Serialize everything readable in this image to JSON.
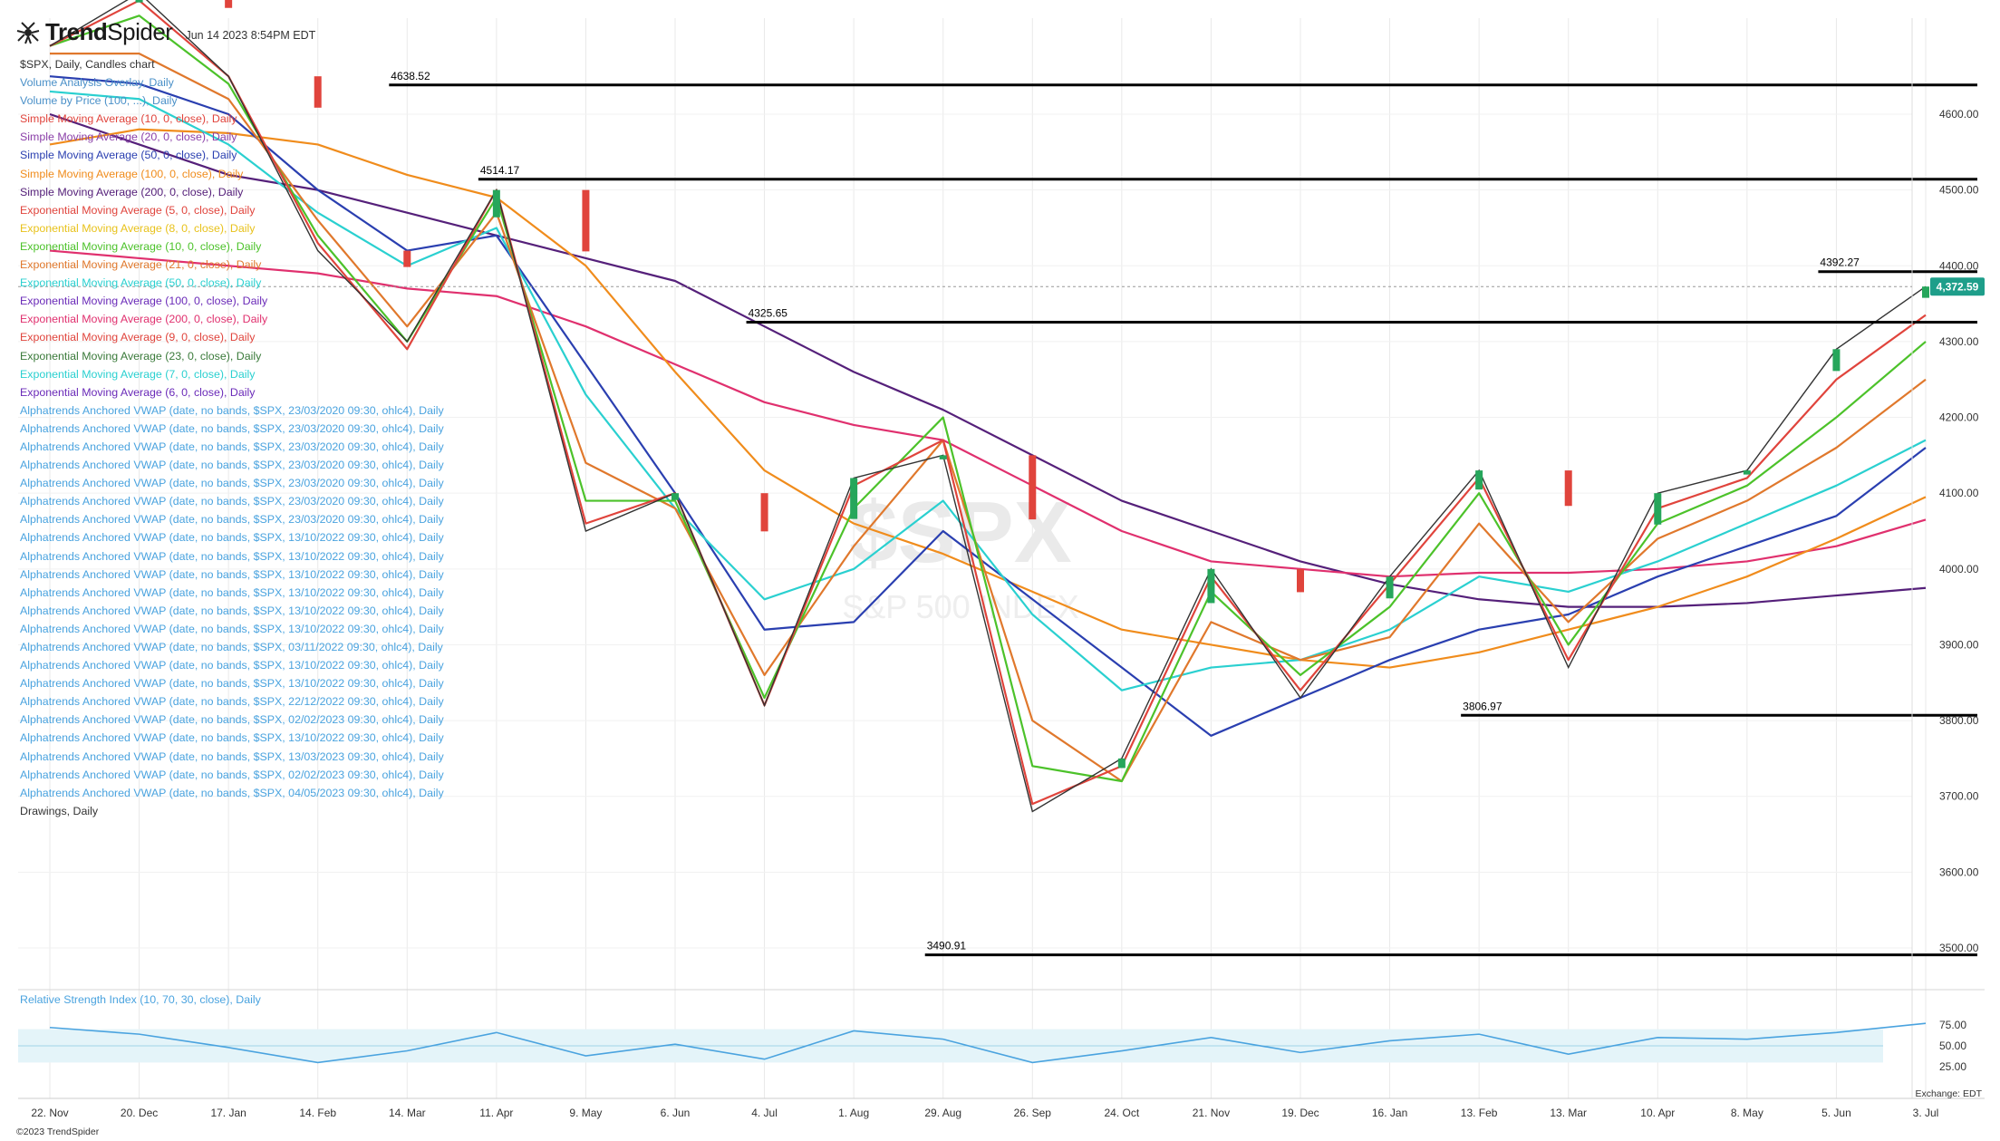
{
  "header": {
    "brand_bold": "Trend",
    "brand_light": "Spider",
    "date": "Jun 14 2023 8:54PM EDT"
  },
  "legend": [
    {
      "text": "$SPX, Daily, Candles chart",
      "color": "#333333"
    },
    {
      "text": "Volume Analysis Overlay, Daily",
      "color": "#4a90c8"
    },
    {
      "text": "Volume by Price (100, ...), Daily",
      "color": "#4a90c8"
    },
    {
      "text": "Simple Moving Average (10, 0, close), Daily",
      "color": "#e0443c"
    },
    {
      "text": "Simple Moving Average (20, 0, close), Daily",
      "color": "#8a3fa8"
    },
    {
      "text": "Simple Moving Average (50, 0, close), Daily",
      "color": "#2a3fb0"
    },
    {
      "text": "Simple Moving Average (100, 0, close), Daily",
      "color": "#f08c1c"
    },
    {
      "text": "Simple Moving Average (200, 0, close), Daily",
      "color": "#55207a"
    },
    {
      "text": "Exponential Moving Average (5, 0, close), Daily",
      "color": "#e0443c"
    },
    {
      "text": "Exponential Moving Average (8, 0, close), Daily",
      "color": "#e8c21c"
    },
    {
      "text": "Exponential Moving Average (10, 0, close), Daily",
      "color": "#4cc22a"
    },
    {
      "text": "Exponential Moving Average (21, 0, close), Daily",
      "color": "#e0782c"
    },
    {
      "text": "Exponential Moving Average (50, 0, close), Daily",
      "color": "#2ad0d0"
    },
    {
      "text": "Exponential Moving Average (100, 0, close), Daily",
      "color": "#6a2ab8"
    },
    {
      "text": "Exponential Moving Average (200, 0, close), Daily",
      "color": "#e0306e"
    },
    {
      "text": "Exponential Moving Average (9, 0, close), Daily",
      "color": "#e0443c"
    },
    {
      "text": "Exponential Moving Average (23, 0, close), Daily",
      "color": "#3a7a3a"
    },
    {
      "text": "Exponential Moving Average (7, 0, close), Daily",
      "color": "#2ad0d0"
    },
    {
      "text": "Exponential Moving Average (6, 0, close), Daily",
      "color": "#6a2ab8"
    },
    {
      "text": "Alphatrends Anchored VWAP (date, no bands, $SPX, 23/03/2020 09:30, ohlc4), Daily",
      "color": "#4aa3df"
    },
    {
      "text": "Alphatrends Anchored VWAP (date, no bands, $SPX, 23/03/2020 09:30, ohlc4), Daily",
      "color": "#4aa3df"
    },
    {
      "text": "Alphatrends Anchored VWAP (date, no bands, $SPX, 23/03/2020 09:30, ohlc4), Daily",
      "color": "#4aa3df"
    },
    {
      "text": "Alphatrends Anchored VWAP (date, no bands, $SPX, 23/03/2020 09:30, ohlc4), Daily",
      "color": "#4aa3df"
    },
    {
      "text": "Alphatrends Anchored VWAP (date, no bands, $SPX, 23/03/2020 09:30, ohlc4), Daily",
      "color": "#4aa3df"
    },
    {
      "text": "Alphatrends Anchored VWAP (date, no bands, $SPX, 23/03/2020 09:30, ohlc4), Daily",
      "color": "#4aa3df"
    },
    {
      "text": "Alphatrends Anchored VWAP (date, no bands, $SPX, 23/03/2020 09:30, ohlc4), Daily",
      "color": "#4aa3df"
    },
    {
      "text": "Alphatrends Anchored VWAP (date, no bands, $SPX, 13/10/2022 09:30, ohlc4), Daily",
      "color": "#4aa3df"
    },
    {
      "text": "Alphatrends Anchored VWAP (date, no bands, $SPX, 13/10/2022 09:30, ohlc4), Daily",
      "color": "#4aa3df"
    },
    {
      "text": "Alphatrends Anchored VWAP (date, no bands, $SPX, 13/10/2022 09:30, ohlc4), Daily",
      "color": "#4aa3df"
    },
    {
      "text": "Alphatrends Anchored VWAP (date, no bands, $SPX, 13/10/2022 09:30, ohlc4), Daily",
      "color": "#4aa3df"
    },
    {
      "text": "Alphatrends Anchored VWAP (date, no bands, $SPX, 13/10/2022 09:30, ohlc4), Daily",
      "color": "#4aa3df"
    },
    {
      "text": "Alphatrends Anchored VWAP (date, no bands, $SPX, 13/10/2022 09:30, ohlc4), Daily",
      "color": "#4aa3df"
    },
    {
      "text": "Alphatrends Anchored VWAP (date, no bands, $SPX, 03/11/2022 09:30, ohlc4), Daily",
      "color": "#4aa3df"
    },
    {
      "text": "Alphatrends Anchored VWAP (date, no bands, $SPX, 13/10/2022 09:30, ohlc4), Daily",
      "color": "#4aa3df"
    },
    {
      "text": "Alphatrends Anchored VWAP (date, no bands, $SPX, 13/10/2022 09:30, ohlc4), Daily",
      "color": "#4aa3df"
    },
    {
      "text": "Alphatrends Anchored VWAP (date, no bands, $SPX, 22/12/2022 09:30, ohlc4), Daily",
      "color": "#4aa3df"
    },
    {
      "text": "Alphatrends Anchored VWAP (date, no bands, $SPX, 02/02/2023 09:30, ohlc4), Daily",
      "color": "#4aa3df"
    },
    {
      "text": "Alphatrends Anchored VWAP (date, no bands, $SPX, 13/10/2022 09:30, ohlc4), Daily",
      "color": "#4aa3df"
    },
    {
      "text": "Alphatrends Anchored VWAP (date, no bands, $SPX, 13/03/2023 09:30, ohlc4), Daily",
      "color": "#4aa3df"
    },
    {
      "text": "Alphatrends Anchored VWAP (date, no bands, $SPX, 02/02/2023 09:30, ohlc4), Daily",
      "color": "#4aa3df"
    },
    {
      "text": "Alphatrends Anchored VWAP (date, no bands, $SPX, 04/05/2023 09:30, ohlc4), Daily",
      "color": "#4aa3df"
    },
    {
      "text": "Drawings, Daily",
      "color": "#333333"
    }
  ],
  "footer": {
    "copyright": "©2023 TrendSpider",
    "exchange": "Exchange: EDT"
  },
  "rsi_label": "Relative Strength Index (10, 70, 30, close), Daily",
  "chart_data": {
    "type": "candlestick",
    "symbol": "$SPX",
    "watermark": "$SPX",
    "watermark_sub": "S&P 500 INDEX",
    "price_axis": {
      "min": 3450,
      "max": 4700,
      "ticks": [
        3500,
        3600,
        3700,
        3800,
        3900,
        4000,
        4100,
        4200,
        4300,
        4400,
        4500,
        4600
      ]
    },
    "last_price": 4372.59,
    "last_price_label": "4,372.59",
    "x_labels": [
      "22. Nov",
      "20. Dec",
      "17. Jan",
      "14. Feb",
      "14. Mar",
      "11. Apr",
      "9. May",
      "6. Jun",
      "4. Jul",
      "1. Aug",
      "29. Aug",
      "26. Sep",
      "24. Oct",
      "21. Nov",
      "19. Dec",
      "16. Jan",
      "13. Feb",
      "13. Mar",
      "10. Apr",
      "8. May",
      "5. Jun",
      "3. Jul"
    ],
    "horizontal_levels": [
      {
        "value": 4638.52,
        "label": "4638.52",
        "start_label": "14. Mar"
      },
      {
        "value": 4514.17,
        "label": "4514.17",
        "start_label": "11. Apr"
      },
      {
        "value": 4392.27,
        "label": "4392.27",
        "start_label": "5. Jun"
      },
      {
        "value": 4325.65,
        "label": "4325.65",
        "start_label": "4. Jul"
      },
      {
        "value": 3806.97,
        "label": "3806.97",
        "start_label": "13. Feb"
      },
      {
        "value": 3490.91,
        "label": "3490.91",
        "start_label": "29. Aug"
      }
    ],
    "price_series": [
      [
        "22. Nov",
        4690
      ],
      [
        "20. Dec",
        4760
      ],
      [
        "17. Jan",
        4650
      ],
      [
        "14. Feb",
        4420
      ],
      [
        "14. Mar",
        4300
      ],
      [
        "11. Apr",
        4500
      ],
      [
        "9. May",
        4050
      ],
      [
        "6. Jun",
        4100
      ],
      [
        "4. Jul",
        3820
      ],
      [
        "1. Aug",
        4120
      ],
      [
        "29. Aug",
        4150
      ],
      [
        "26. Sep",
        3680
      ],
      [
        "24. Oct",
        3750
      ],
      [
        "21. Nov",
        4000
      ],
      [
        "19. Dec",
        3830
      ],
      [
        "16. Jan",
        3990
      ],
      [
        "13. Feb",
        4130
      ],
      [
        "13. Mar",
        3870
      ],
      [
        "10. Apr",
        4100
      ],
      [
        "8. May",
        4130
      ],
      [
        "5. Jun",
        4290
      ],
      [
        "3. Jul",
        4372.59
      ]
    ],
    "moving_averages": [
      {
        "name": "Simple Moving Average (200, 0, close)",
        "color": "#55207a",
        "values": [
          4600,
          4560,
          4520,
          4500,
          4470,
          4440,
          4410,
          4380,
          4320,
          4260,
          4210,
          4150,
          4090,
          4050,
          4010,
          3980,
          3960,
          3950,
          3950,
          3955,
          3965,
          3975
        ]
      },
      {
        "name": "Exponential Moving Average (200, 0, close)",
        "color": "#e0306e",
        "values": [
          4420,
          4410,
          4400,
          4390,
          4370,
          4360,
          4320,
          4270,
          4220,
          4190,
          4170,
          4110,
          4050,
          4010,
          4000,
          3990,
          3995,
          3995,
          4000,
          4010,
          4030,
          4065
        ]
      },
      {
        "name": "Simple Moving Average (100, 0, close)",
        "color": "#f08c1c",
        "values": [
          4560,
          4580,
          4575,
          4560,
          4520,
          4490,
          4400,
          4260,
          4130,
          4060,
          4020,
          3970,
          3920,
          3900,
          3880,
          3870,
          3890,
          3920,
          3950,
          3990,
          4040,
          4095
        ]
      },
      {
        "name": "Simple Moving Average (50, 0, close)",
        "color": "#2a3fb0",
        "values": [
          4650,
          4640,
          4600,
          4500,
          4420,
          4440,
          4270,
          4100,
          3920,
          3930,
          4050,
          3960,
          3870,
          3780,
          3830,
          3880,
          3920,
          3940,
          3990,
          4030,
          4070,
          4160
        ]
      },
      {
        "name": "Exponential Moving Average (50, 0, close)",
        "color": "#2ad0d0",
        "values": [
          4630,
          4620,
          4560,
          4470,
          4400,
          4450,
          4230,
          4080,
          3960,
          4000,
          4090,
          3940,
          3840,
          3870,
          3880,
          3920,
          3990,
          3970,
          4010,
          4060,
          4110,
          4170
        ]
      },
      {
        "name": "Exponential Moving Average (21, 0, close)",
        "color": "#e0782c",
        "values": [
          4680,
          4680,
          4620,
          4460,
          4320,
          4470,
          4140,
          4080,
          3860,
          4030,
          4170,
          3800,
          3720,
          3930,
          3880,
          3910,
          4060,
          3930,
          4040,
          4090,
          4160,
          4250
        ]
      },
      {
        "name": "Exponential Moving Average (10, 0, close)",
        "color": "#4cc22a",
        "values": [
          4690,
          4730,
          4640,
          4440,
          4300,
          4490,
          4090,
          4090,
          3830,
          4080,
          4200,
          3740,
          3720,
          3970,
          3860,
          3950,
          4100,
          3900,
          4060,
          4110,
          4200,
          4300
        ]
      },
      {
        "name": "Exponential Moving Average (5, 0, close)",
        "color": "#e0443c",
        "values": [
          4690,
          4750,
          4650,
          4430,
          4290,
          4500,
          4060,
          4100,
          3820,
          4110,
          4170,
          3690,
          3740,
          3990,
          3840,
          3980,
          4120,
          3880,
          4080,
          4120,
          4250,
          4335
        ]
      }
    ],
    "rsi": {
      "name": "Relative Strength Index (10, 70, 30, close)",
      "range": [
        0,
        100
      ],
      "levels": [
        70,
        30
      ],
      "ticks": [
        75,
        50,
        25
      ],
      "tick_labels": [
        "75.00",
        "50.00",
        "25.00"
      ],
      "values": [
        72,
        64,
        48,
        30,
        44,
        66,
        38,
        52,
        34,
        68,
        58,
        30,
        44,
        60,
        42,
        56,
        64,
        40,
        60,
        58,
        66,
        77
      ]
    }
  }
}
